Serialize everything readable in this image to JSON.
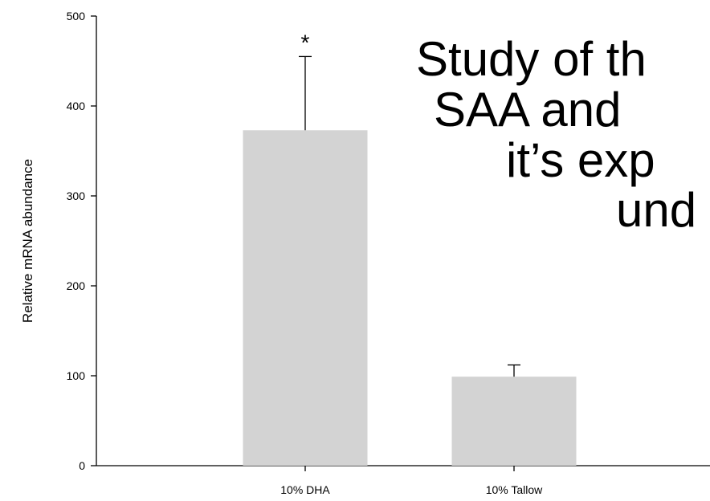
{
  "chart_data": {
    "type": "bar",
    "categories": [
      "10% DHA",
      "10% Tallow"
    ],
    "values": [
      373,
      99
    ],
    "error_upper": [
      455,
      112
    ],
    "annotations": [
      "*",
      ""
    ],
    "ylabel": "Relative mRNA abundance",
    "xlabel": "",
    "ylim": [
      0,
      500
    ],
    "yticks": [
      0,
      100,
      200,
      300,
      400,
      500
    ],
    "grid": false,
    "bar_color": "#d3d3d3"
  },
  "overlay_text": {
    "line1": "Study of th",
    "line2": "SAA and",
    "line3": "it’s exp",
    "line4": "und"
  }
}
